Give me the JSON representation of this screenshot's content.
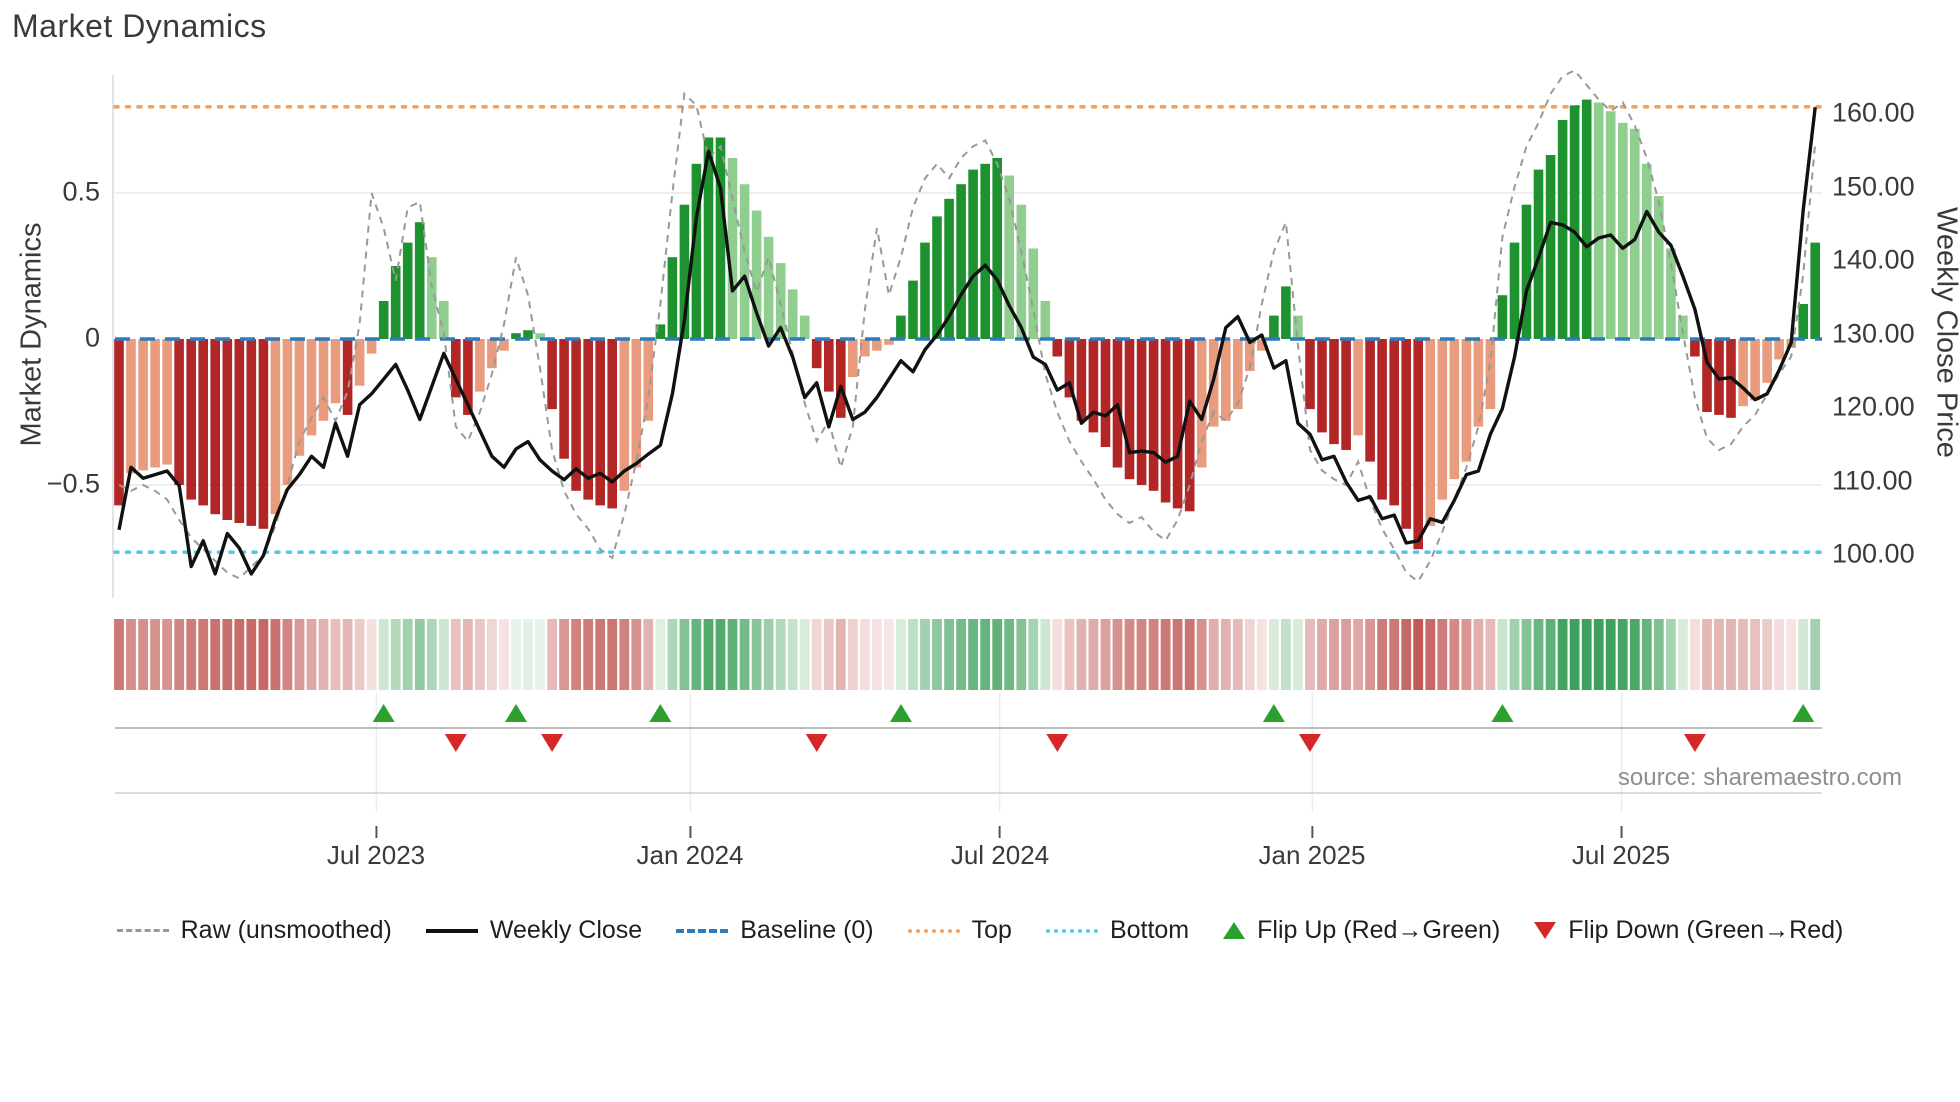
{
  "title": "Market Dynamics",
  "axes": {
    "left_title": "Market Dynamics",
    "right_title": "Weekly Close Price",
    "left_ticks": [
      "0.5",
      "0",
      "−0.5"
    ],
    "right_ticks": [
      "160.00",
      "150.00",
      "140.00",
      "130.00",
      "120.00",
      "110.00",
      "100.00"
    ]
  },
  "source": "source: sharemaestro.com",
  "legend": {
    "items": [
      {
        "label": "Raw (unsmoothed)",
        "type": "dashed-line",
        "color": "#999999"
      },
      {
        "label": "Weekly Close",
        "type": "solid-line",
        "color": "#111111"
      },
      {
        "label": "Baseline (0)",
        "type": "dashed-line",
        "color": "#2b7bbd"
      },
      {
        "label": "Top",
        "type": "dotted-line",
        "color": "#f0a35e"
      },
      {
        "label": "Bottom",
        "type": "dotted-line",
        "color": "#55c8e9"
      },
      {
        "label": "Flip Up (Red→Green)",
        "type": "triangle-up",
        "color": "#2ca02c"
      },
      {
        "label": "Flip Down (Green→Red)",
        "type": "triangle-down",
        "color": "#d62728"
      }
    ]
  },
  "colors": {
    "bar_dark_green": "#1f9230",
    "bar_light_green": "#90ce90",
    "bar_dark_red": "#b22626",
    "bar_light_red": "#e89b7d",
    "baseline_blue": "#2b7bbd",
    "top_orange": "#f0a35e",
    "bottom_cyan": "#55c8e9",
    "raw_gray": "#999999",
    "price_black": "#111111",
    "flip_up_green": "#2ca02c",
    "flip_down_red": "#d62728"
  },
  "chart_data": {
    "type": "combo",
    "weeks": 142,
    "x_ticks": [
      {
        "label": "Jul 2023",
        "week": 21.4
      },
      {
        "label": "Jan 2024",
        "week": 47.5
      },
      {
        "label": "Jul 2024",
        "week": 73.2
      },
      {
        "label": "Jan 2025",
        "week": 99.2
      },
      {
        "label": "Jul 2025",
        "week": 124.9
      }
    ],
    "y_left_range": [
      -0.9,
      0.95
    ],
    "y_right_range": [
      95,
      165
    ],
    "ref_lines": {
      "baseline": 0,
      "top": 0.795,
      "bottom": -0.73
    },
    "oscillator": [
      -0.57,
      -0.46,
      -0.45,
      -0.44,
      -0.43,
      -0.5,
      -0.55,
      -0.57,
      -0.6,
      -0.62,
      -0.63,
      -0.64,
      -0.65,
      -0.6,
      -0.5,
      -0.4,
      -0.33,
      -0.28,
      -0.22,
      -0.26,
      -0.16,
      -0.05,
      0.13,
      0.25,
      0.33,
      0.4,
      0.28,
      0.13,
      -0.2,
      -0.26,
      -0.18,
      -0.1,
      -0.04,
      0.02,
      0.03,
      0.02,
      -0.24,
      -0.41,
      -0.52,
      -0.55,
      -0.57,
      -0.58,
      -0.52,
      -0.44,
      -0.28,
      0.05,
      0.28,
      0.46,
      0.6,
      0.69,
      0.69,
      0.62,
      0.53,
      0.44,
      0.35,
      0.26,
      0.17,
      0.08,
      -0.1,
      -0.18,
      -0.27,
      -0.13,
      -0.06,
      -0.04,
      -0.02,
      0.08,
      0.2,
      0.33,
      0.42,
      0.48,
      0.53,
      0.58,
      0.6,
      0.62,
      0.56,
      0.46,
      0.31,
      0.13,
      -0.06,
      -0.2,
      -0.28,
      -0.32,
      -0.37,
      -0.44,
      -0.48,
      -0.5,
      -0.52,
      -0.56,
      -0.58,
      -0.59,
      -0.44,
      -0.3,
      -0.28,
      -0.24,
      -0.11,
      -0.04,
      0.08,
      0.18,
      0.08,
      -0.24,
      -0.32,
      -0.36,
      -0.38,
      -0.33,
      -0.42,
      -0.55,
      -0.57,
      -0.65,
      -0.72,
      -0.64,
      -0.55,
      -0.48,
      -0.42,
      -0.3,
      -0.24,
      0.15,
      0.33,
      0.46,
      0.58,
      0.63,
      0.75,
      0.8,
      0.82,
      0.81,
      0.78,
      0.74,
      0.72,
      0.6,
      0.49,
      0.31,
      0.08,
      -0.06,
      -0.25,
      -0.26,
      -0.27,
      -0.23,
      -0.21,
      -0.15,
      -0.07,
      -0.03,
      0.12,
      0.33
    ],
    "raw": [
      -0.5,
      -0.52,
      -0.5,
      -0.52,
      -0.55,
      -0.62,
      -0.68,
      -0.72,
      -0.76,
      -0.8,
      -0.82,
      -0.78,
      -0.74,
      -0.64,
      -0.5,
      -0.35,
      -0.27,
      -0.2,
      -0.28,
      -0.18,
      0.05,
      0.5,
      0.38,
      0.2,
      0.45,
      0.47,
      0.18,
      0.02,
      -0.3,
      -0.35,
      -0.25,
      -0.12,
      0.05,
      0.28,
      0.15,
      -0.1,
      -0.38,
      -0.52,
      -0.6,
      -0.65,
      -0.72,
      -0.75,
      -0.6,
      -0.42,
      -0.2,
      0.12,
      0.5,
      0.84,
      0.8,
      0.62,
      0.66,
      0.48,
      0.3,
      0.16,
      0.28,
      0.12,
      -0.05,
      -0.22,
      -0.35,
      -0.28,
      -0.44,
      -0.3,
      0.1,
      0.38,
      0.15,
      0.28,
      0.45,
      0.55,
      0.6,
      0.55,
      0.62,
      0.66,
      0.68,
      0.6,
      0.48,
      0.3,
      0.1,
      -0.12,
      -0.25,
      -0.35,
      -0.42,
      -0.48,
      -0.55,
      -0.6,
      -0.63,
      -0.61,
      -0.66,
      -0.69,
      -0.62,
      -0.5,
      -0.35,
      -0.25,
      -0.28,
      -0.22,
      -0.1,
      0.12,
      0.3,
      0.4,
      -0.02,
      -0.38,
      -0.45,
      -0.48,
      -0.5,
      -0.42,
      -0.55,
      -0.65,
      -0.72,
      -0.8,
      -0.83,
      -0.76,
      -0.66,
      -0.55,
      -0.44,
      -0.3,
      -0.08,
      0.35,
      0.52,
      0.66,
      0.74,
      0.84,
      0.9,
      0.92,
      0.87,
      0.82,
      0.78,
      0.81,
      0.73,
      0.62,
      0.47,
      0.26,
      0.02,
      -0.2,
      -0.34,
      -0.38,
      -0.36,
      -0.3,
      -0.26,
      -0.19,
      -0.12,
      -0.06,
      0.22,
      0.67
    ],
    "price": [
      103.5,
      112,
      110.5,
      111,
      111.5,
      109.5,
      98.5,
      102,
      97.5,
      103,
      101,
      97.5,
      100,
      105,
      109,
      111,
      113.5,
      112,
      118,
      113.5,
      120.5,
      122,
      124,
      126,
      122.5,
      118.5,
      123,
      127.5,
      124,
      120.5,
      117,
      113.5,
      112,
      114.5,
      115.5,
      113,
      111.5,
      110.3,
      111.8,
      110.5,
      111.2,
      110,
      111.5,
      112.5,
      113.8,
      115,
      122,
      132,
      146,
      155,
      150,
      136,
      138,
      133,
      128.5,
      131,
      127,
      121.5,
      123.5,
      117.5,
      123,
      118.5,
      119.5,
      121.5,
      124,
      126.5,
      125,
      128,
      130,
      132.5,
      135.5,
      138,
      139.5,
      137.5,
      134,
      131,
      127,
      126,
      122.5,
      123.5,
      118,
      119.5,
      119,
      120.5,
      114,
      114.2,
      114,
      112.7,
      113.5,
      121,
      118.5,
      124,
      131,
      132.5,
      129,
      130,
      125.5,
      126.5,
      118,
      116.5,
      113,
      113.5,
      110,
      107.5,
      108,
      105,
      105.5,
      101.7,
      102,
      105,
      104.5,
      107.5,
      111,
      111.5,
      116.5,
      120,
      127,
      136,
      140.5,
      145.3,
      145,
      144,
      142,
      143.2,
      143.6,
      141.8,
      143,
      146.8,
      144,
      142.2,
      138,
      133.5,
      126.3,
      124,
      124.2,
      122.8,
      121.2,
      122,
      125.2,
      129,
      147,
      161
    ],
    "flip_up_weeks": [
      22,
      33,
      45,
      65,
      96,
      115,
      140
    ],
    "flip_down_weeks": [
      28,
      36,
      58,
      78,
      99,
      131
    ]
  }
}
